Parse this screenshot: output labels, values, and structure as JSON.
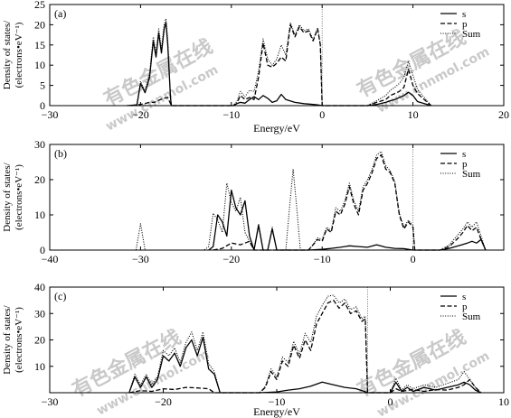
{
  "watermark": {
    "cn": "有色金属在线",
    "url": "www.cnnmol.com"
  },
  "chart_data": [
    {
      "type": "line",
      "panel_label": "(a)",
      "xlabel": "Energy/eV",
      "ylabel_line1": "Density of states/",
      "ylabel_line2": "(electrons•eV⁻¹)",
      "xlim": [
        -30,
        20
      ],
      "ylim": [
        0,
        25
      ],
      "xticks": [
        -30,
        -20,
        -10,
        0,
        10,
        20
      ],
      "yticks": [
        0,
        5,
        10,
        15,
        20,
        25
      ],
      "fermi_level": 0,
      "legend": {
        "position": "top-right",
        "entries": [
          "s",
          "p",
          "Sum"
        ]
      },
      "series": [
        {
          "name": "s",
          "style": "solid",
          "x": [
            -21.5,
            -20.4,
            -20,
            -19.5,
            -19,
            -18.6,
            -18.3,
            -18,
            -17.7,
            -17.4,
            -17.2,
            -17,
            -16.7,
            -16.6,
            -12,
            -9.8,
            -9.4,
            -9,
            -8.5,
            -8,
            -7.5,
            -7,
            -6.5,
            -6,
            -5.5,
            -5,
            -4.5,
            -4,
            -3,
            -2,
            -1,
            -0.5,
            0,
            1,
            3,
            5,
            6,
            7,
            7.5,
            8,
            8.5,
            9,
            9.5,
            10,
            10.5,
            12
          ],
          "y": [
            0,
            0.2,
            5.5,
            3.2,
            7,
            16,
            12,
            18,
            13,
            19,
            20.5,
            15,
            2,
            0,
            0,
            0,
            0.5,
            0.8,
            0.6,
            1.5,
            2.2,
            1.5,
            2.5,
            1.8,
            0.8,
            1.2,
            2.8,
            1.5,
            0.8,
            0.5,
            0.3,
            0.2,
            0,
            0,
            0,
            0,
            0.3,
            0.8,
            1.2,
            1.5,
            2,
            2.5,
            3.3,
            2.5,
            1,
            0
          ]
        },
        {
          "name": "p",
          "style": "dashed",
          "x": [
            -21,
            -20,
            -19,
            -18.5,
            -18,
            -17.5,
            -17,
            -16.6,
            -12,
            -9.8,
            -9.4,
            -9,
            -8.5,
            -8,
            -7.5,
            -7,
            -6.5,
            -6,
            -5.5,
            -5,
            -4.5,
            -4,
            -3.5,
            -3,
            -2.5,
            -2,
            -1.5,
            -1,
            -0.5,
            -0.2,
            0,
            1,
            3,
            5,
            6,
            7,
            7.5,
            8,
            8.5,
            9,
            9.5,
            10,
            10.5,
            12
          ],
          "y": [
            0,
            0.3,
            0.8,
            0.8,
            1.3,
            1.8,
            2,
            0,
            0,
            0,
            0.5,
            2.5,
            1.5,
            2,
            1.5,
            7,
            15.5,
            10,
            9.5,
            10.5,
            12,
            11,
            20,
            17,
            19.5,
            18,
            18.5,
            16,
            19,
            15,
            0,
            0,
            0,
            0,
            0.8,
            1.5,
            2.5,
            3,
            3.5,
            4.5,
            9,
            5,
            3,
            0
          ]
        },
        {
          "name": "Sum",
          "style": "dotted",
          "x": [
            -21.5,
            -20.4,
            -20,
            -19.5,
            -19,
            -18.6,
            -18.3,
            -18,
            -17.7,
            -17.4,
            -17.2,
            -17,
            -16.7,
            -16.6,
            -12,
            -9.8,
            -9.4,
            -9,
            -8.5,
            -8,
            -7.5,
            -7,
            -6.5,
            -6,
            -5.5,
            -5,
            -4.5,
            -4,
            -3.5,
            -3,
            -2.5,
            -2,
            -1.5,
            -1,
            -0.5,
            -0.2,
            0,
            1,
            3,
            5,
            6,
            7,
            7.5,
            8,
            8.5,
            9,
            9.5,
            10,
            10.5,
            12
          ],
          "y": [
            0,
            0.2,
            6,
            3.5,
            8,
            17,
            13,
            19,
            14,
            20,
            21.5,
            16,
            2.2,
            0,
            0,
            0,
            1,
            3.5,
            2.2,
            3.8,
            3.5,
            8.5,
            16.5,
            11.5,
            10,
            11.5,
            15,
            12.5,
            20.5,
            17.5,
            20,
            18.5,
            19,
            16.3,
            19.2,
            15.2,
            0,
            0,
            0,
            0,
            1.2,
            2.5,
            3.8,
            4.5,
            5.5,
            7,
            11,
            7.5,
            4,
            0
          ]
        }
      ]
    },
    {
      "type": "line",
      "panel_label": "(b)",
      "xlabel": "",
      "ylabel_line1": "Density of states/",
      "ylabel_line2": "(electrons•eV⁻¹)",
      "xlim": [
        -40,
        10
      ],
      "ylim": [
        0,
        30
      ],
      "xticks": [
        -40,
        -30,
        -20,
        -10,
        0
      ],
      "yticks": [
        0,
        10,
        20,
        30
      ],
      "fermi_level": 0,
      "legend": {
        "position": "top-right",
        "entries": [
          "s",
          "p",
          "Sum"
        ]
      },
      "series": [
        {
          "name": "s",
          "style": "solid",
          "x": [
            -22.5,
            -22,
            -21.5,
            -21,
            -20.5,
            -20,
            -19.5,
            -19,
            -18.5,
            -18,
            -17.5,
            -17,
            -16.5,
            -16,
            -15.5,
            -15,
            -14.5,
            -11.5,
            -10,
            -9,
            -8,
            -7,
            -6,
            -5,
            -4,
            -3,
            -2,
            -1,
            0,
            1,
            3,
            4,
            5,
            6,
            6.5,
            7,
            7.5,
            8
          ],
          "y": [
            0,
            1,
            10,
            8,
            4,
            17,
            12,
            10,
            14,
            4,
            0,
            7,
            0,
            0,
            6,
            0,
            0,
            0,
            0.2,
            0.5,
            0.8,
            1.2,
            1,
            0.8,
            1.5,
            0.8,
            0.5,
            0.4,
            0,
            0,
            0,
            0.5,
            1.2,
            2,
            2.5,
            2,
            3,
            0
          ]
        },
        {
          "name": "p",
          "style": "dashed",
          "x": [
            -22,
            -21,
            -20,
            -19,
            -18,
            -17.5,
            -15,
            -11.5,
            -11,
            -10.5,
            -10,
            -9.5,
            -9,
            -8.5,
            -8,
            -7.5,
            -7,
            -6.5,
            -6,
            -5.5,
            -5,
            -4.5,
            -4,
            -3.5,
            -3,
            -2.5,
            -2,
            -1.5,
            -1,
            -0.5,
            0,
            0.2,
            3,
            4,
            5,
            5.5,
            6,
            6.5,
            7,
            7.5,
            8
          ],
          "y": [
            0,
            0.5,
            2,
            1.5,
            2.5,
            0,
            0,
            0,
            1.5,
            3,
            2.5,
            6,
            5,
            11,
            10,
            13,
            18,
            13,
            10,
            17,
            19,
            22,
            26,
            27,
            23,
            22,
            19,
            10,
            6,
            8,
            6.5,
            0,
            0,
            1,
            3.5,
            5,
            7,
            5.5,
            6.5,
            3,
            0
          ]
        },
        {
          "name": "Sum",
          "style": "dotted",
          "x": [
            -31,
            -30.5,
            -30,
            -29.5,
            -29,
            -23,
            -22.5,
            -22,
            -21.5,
            -21,
            -20.5,
            -20,
            -19.5,
            -19,
            -18.5,
            -18,
            -17.5,
            -17,
            -16.5,
            -16,
            -15.5,
            -15,
            -14,
            -13.6,
            -13.2,
            -12.8,
            -12.4,
            -11.5,
            -11,
            -10.5,
            -10,
            -9.5,
            -9,
            -8.5,
            -8,
            -7.5,
            -7,
            -6.5,
            -6,
            -5.5,
            -5,
            -4.5,
            -4,
            -3.5,
            -3,
            -2.5,
            -2,
            -1.5,
            -1,
            -0.5,
            0,
            0.2,
            3,
            4,
            5,
            5.5,
            6,
            6.5,
            7,
            7.5,
            8
          ],
          "y": [
            0,
            0,
            7.5,
            0,
            0,
            0,
            1,
            10.5,
            8.5,
            5,
            19,
            13.5,
            11,
            15,
            5,
            2.5,
            0,
            7.5,
            0,
            0,
            6.5,
            0,
            0,
            12,
            23,
            12,
            0,
            0,
            1.5,
            3.5,
            3,
            6.5,
            5.5,
            12,
            11,
            14,
            19,
            14,
            11,
            18,
            20,
            23,
            27,
            28,
            24,
            22.5,
            19.5,
            10.5,
            6.5,
            8.5,
            7,
            0,
            0,
            1.5,
            4.5,
            6,
            8,
            6.5,
            8,
            4,
            0
          ]
        }
      ]
    },
    {
      "type": "line",
      "panel_label": "(c)",
      "xlabel": "Energy/eV",
      "ylabel_line1": "Density of states/",
      "ylabel_line2": "(electrons•eV⁻¹)",
      "xlim": [
        -30,
        10
      ],
      "ylim": [
        0,
        40
      ],
      "xticks": [
        -30,
        -20,
        -10,
        0,
        10
      ],
      "yticks": [
        10,
        20,
        30,
        40
      ],
      "fermi_level": -2,
      "legend": {
        "position": "top-right",
        "entries": [
          "s",
          "p",
          "Sum"
        ]
      },
      "series": [
        {
          "name": "s",
          "style": "solid",
          "x": [
            -23,
            -22.5,
            -22,
            -21.5,
            -21,
            -20.5,
            -20,
            -19.5,
            -19,
            -18.5,
            -18,
            -17.5,
            -17,
            -16.5,
            -16,
            -15.5,
            -15,
            -11.5,
            -10,
            -9,
            -8,
            -7,
            -6,
            -5,
            -4,
            -3,
            -2.3,
            -2,
            0,
            0.5,
            1,
            1.5,
            2,
            3,
            4,
            5,
            6,
            6.5,
            7,
            7.5,
            8
          ],
          "y": [
            0,
            6,
            2,
            6,
            2,
            5,
            14,
            12,
            15,
            10,
            17,
            20,
            14,
            21,
            9,
            7,
            0,
            0,
            0.3,
            1,
            1.5,
            2.5,
            4,
            3,
            2,
            1.5,
            0.5,
            0,
            0,
            4,
            0.5,
            2,
            0.5,
            2,
            1,
            2,
            3,
            4,
            3,
            1,
            0
          ]
        },
        {
          "name": "p",
          "style": "dashed",
          "x": [
            -23,
            -22,
            -21,
            -20,
            -19,
            -18,
            -17,
            -16,
            -15.5,
            -11.5,
            -11,
            -10.5,
            -10,
            -9.5,
            -9,
            -8.5,
            -8,
            -7.5,
            -7,
            -6.5,
            -6,
            -5.5,
            -5,
            -4.5,
            -4,
            -3.5,
            -3,
            -2.5,
            -2.2,
            -2,
            0,
            0.5,
            1,
            2,
            3,
            4,
            5,
            6,
            6.5,
            7,
            7.5,
            8
          ],
          "y": [
            0,
            0.8,
            0.5,
            1.5,
            1.2,
            2,
            1.8,
            1.5,
            0,
            0,
            2,
            8,
            5,
            12,
            10,
            18,
            13,
            20,
            16,
            26,
            30,
            34,
            35,
            32,
            34,
            30,
            31,
            27,
            28,
            0,
            0,
            1.5,
            0.5,
            1.2,
            0.5,
            1.2,
            1,
            2,
            3,
            5,
            2,
            0
          ]
        },
        {
          "name": "Sum",
          "style": "dotted",
          "x": [
            -23,
            -22.5,
            -22,
            -21.5,
            -21,
            -20.5,
            -20,
            -19.5,
            -19,
            -18.5,
            -18,
            -17.5,
            -17,
            -16.5,
            -16,
            -15.5,
            -15,
            -11.5,
            -11,
            -10.5,
            -10,
            -9.5,
            -9,
            -8.5,
            -8,
            -7.5,
            -7,
            -6.5,
            -6,
            -5.5,
            -5,
            -4.5,
            -4,
            -3.5,
            -3,
            -2.5,
            -2.2,
            -2,
            0,
            0.5,
            1,
            1.5,
            2,
            3,
            4,
            5,
            6,
            6.5,
            7,
            7.5,
            8
          ],
          "y": [
            0,
            7,
            3,
            7,
            3,
            6,
            16,
            14,
            17,
            11.5,
            19,
            23,
            16,
            23,
            11,
            8,
            0,
            0,
            2.5,
            9,
            6,
            13.5,
            11.5,
            19.5,
            14.5,
            22.5,
            19,
            29,
            33,
            36.5,
            37,
            34,
            35.5,
            31.5,
            32.5,
            28,
            29,
            0,
            0,
            5.5,
            1,
            3,
            1.5,
            3,
            2,
            3.5,
            5,
            8,
            5,
            2,
            0
          ]
        }
      ]
    }
  ]
}
